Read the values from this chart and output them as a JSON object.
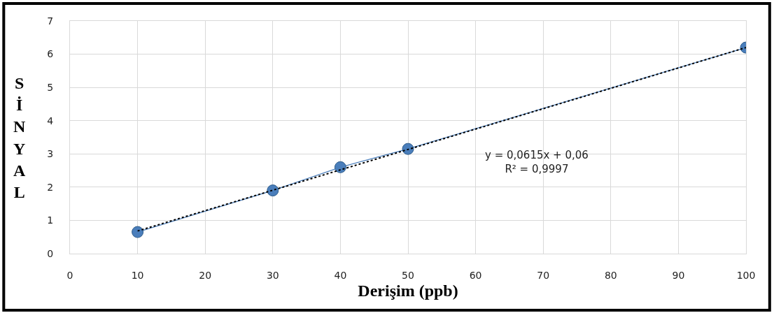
{
  "chart_data": {
    "type": "line",
    "xlabel": "Derişim (ppb)",
    "ylabel": "SİNYAL",
    "x": [
      10,
      30,
      40,
      50,
      100
    ],
    "series": [
      {
        "color": "#4a7ebb",
        "marker": "circle",
        "line_style": "solid",
        "values": [
          0.65,
          1.9,
          2.6,
          3.15,
          6.2
        ]
      },
      {
        "color": "#000000",
        "marker": "none",
        "line_style": "dotted",
        "x": [
          10,
          100
        ],
        "values": [
          0.68,
          6.2
        ]
      }
    ],
    "annotations": [
      "y = 0,0615x + 0,06\nR² = 0,9997"
    ],
    "xlim": [
      0,
      100
    ],
    "xticks": [
      0,
      10,
      20,
      30,
      40,
      50,
      60,
      70,
      80,
      90,
      100
    ],
    "ylim": [
      0,
      7
    ],
    "yticks": [
      0,
      1,
      2,
      3,
      4,
      5,
      6,
      7
    ],
    "grid": true
  }
}
